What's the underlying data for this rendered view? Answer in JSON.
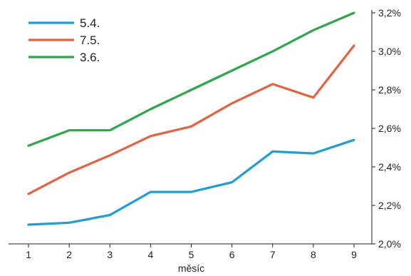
{
  "chart_data": {
    "type": "line",
    "title": "",
    "xlabel": "měsíc",
    "ylabel": "",
    "x": [
      1,
      2,
      3,
      4,
      5,
      6,
      7,
      8,
      9
    ],
    "x_tick_labels": [
      "1",
      "2",
      "3",
      "4",
      "5",
      "6",
      "7",
      "8",
      "9"
    ],
    "ylim": [
      2.0,
      3.2
    ],
    "y_ticks": [
      2.0,
      2.2,
      2.4,
      2.6,
      2.8,
      3.0,
      3.2
    ],
    "y_tick_labels": [
      "2,0%",
      "2,2%",
      "2,4%",
      "2,6%",
      "2,8%",
      "3,0%",
      "3,2%"
    ],
    "y_axis_side": "right",
    "grid": false,
    "legend_position": "top-left",
    "series": [
      {
        "name": "5.4.",
        "color": "#1a9fd9",
        "values": [
          2.1,
          2.11,
          2.15,
          2.27,
          2.27,
          2.32,
          2.48,
          2.47,
          2.54
        ]
      },
      {
        "name": "7.5.",
        "color": "#e8613f",
        "values": [
          2.26,
          2.37,
          2.46,
          2.56,
          2.61,
          2.73,
          2.83,
          2.76,
          3.03
        ]
      },
      {
        "name": "3.6.",
        "color": "#2aa84a",
        "values": [
          2.51,
          2.59,
          2.59,
          2.7,
          2.8,
          2.9,
          3.0,
          3.11,
          3.2
        ]
      }
    ]
  }
}
